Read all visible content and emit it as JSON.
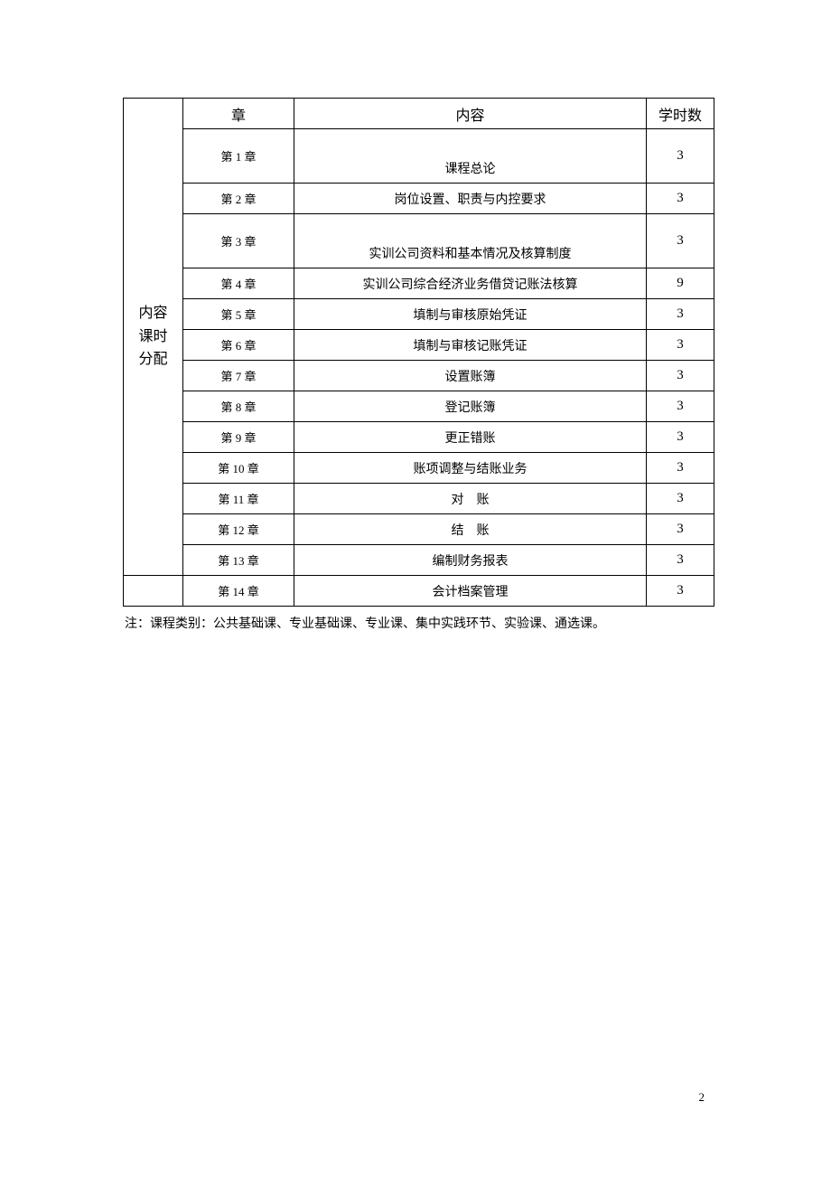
{
  "table": {
    "sidebar_label_line1": "内容",
    "sidebar_label_line2": "课时",
    "sidebar_label_line3": "分配",
    "header": {
      "chapter": "章",
      "content": "内容",
      "hours": "学时数"
    },
    "rows": [
      {
        "chapter": "第 1 章",
        "content": "课程总论",
        "hours": "3",
        "tall": true,
        "content_bottom": true
      },
      {
        "chapter": "第 2 章",
        "content": "岗位设置、职责与内控要求",
        "hours": "3",
        "tall": false
      },
      {
        "chapter": "第 3 章",
        "content": "实训公司资料和基本情况及核算制度",
        "hours": "3",
        "tall": true,
        "content_bottom": true
      },
      {
        "chapter": "第 4 章",
        "content": "实训公司综合经济业务借贷记账法核算",
        "hours": "9",
        "tall": false
      },
      {
        "chapter": "第 5 章",
        "content": "填制与审核原始凭证",
        "hours": "3",
        "tall": false
      },
      {
        "chapter": "第 6 章",
        "content": "填制与审核记账凭证",
        "hours": "3",
        "tall": false
      },
      {
        "chapter": "第 7 章",
        "content": "设置账簿",
        "hours": "3",
        "tall": false
      },
      {
        "chapter": "第 8 章",
        "content": "登记账簿",
        "hours": "3",
        "tall": false
      },
      {
        "chapter": "第 9 章",
        "content": "更正错账",
        "hours": "3",
        "tall": false
      },
      {
        "chapter": "第 10 章",
        "content": "账项调整与结账业务",
        "hours": "3",
        "tall": false
      },
      {
        "chapter": "第 11 章",
        "content": "对　账",
        "hours": "3",
        "tall": false
      },
      {
        "chapter": "第 12 章",
        "content": "结　账",
        "hours": "3",
        "tall": false
      },
      {
        "chapter": "第 13 章",
        "content": "编制财务报表",
        "hours": "3",
        "tall": false
      },
      {
        "chapter": "第 14 章",
        "content": "会计档案管理",
        "hours": "3",
        "tall": false
      }
    ]
  },
  "note": "注：课程类别：公共基础课、专业基础课、专业课、集中实践环节、实验课、通选课。",
  "page_number": "2",
  "colors": {
    "background": "#ffffff",
    "text": "#000000",
    "border": "#000000"
  }
}
